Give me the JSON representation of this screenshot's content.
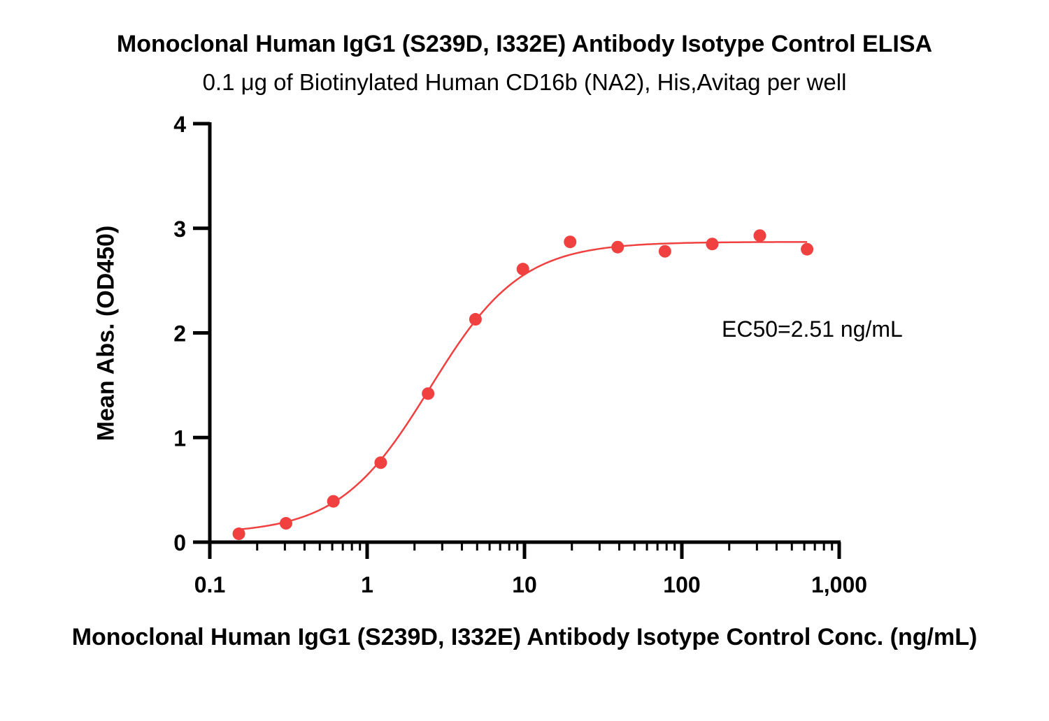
{
  "chart_data": {
    "type": "scatter",
    "title": "Monoclonal Human IgG1 (S239D, I332E) Antibody Isotype Control ELISA",
    "subtitle": "0.1 μg of Biotinylated Human CD16b (NA2), His,Avitag per well",
    "xlabel": "Monoclonal Human IgG1 (S239D, I332E) Antibody Isotype Control Conc. (ng/mL)",
    "ylabel": "Mean Abs. (OD450)",
    "x_scale": "log",
    "xlim": [
      0.1,
      1000
    ],
    "ylim": [
      0,
      4
    ],
    "x_ticks": [
      0.1,
      1,
      10,
      100,
      1000
    ],
    "x_tick_labels": [
      "0.1",
      "1",
      "10",
      "100",
      "1,000"
    ],
    "y_ticks": [
      0,
      1,
      2,
      3,
      4
    ],
    "y_tick_labels": [
      "0",
      "1",
      "2",
      "3",
      "4"
    ],
    "grid": false,
    "series": [
      {
        "color": "#f04040",
        "x": [
          0.153,
          0.305,
          0.61,
          1.22,
          2.44,
          4.88,
          9.77,
          19.5,
          39.1,
          78.1,
          156,
          313,
          625
        ],
        "y": [
          0.08,
          0.18,
          0.39,
          0.76,
          1.42,
          2.13,
          2.61,
          2.87,
          2.82,
          2.78,
          2.85,
          2.93,
          2.8
        ]
      }
    ],
    "fit_curve": {
      "model": "4PL",
      "bottom": 0.08,
      "top": 2.87,
      "ec50": 2.51,
      "hill": 1.5,
      "color": "#f04040"
    },
    "annotation": "EC50=2.51 ng/mL"
  }
}
